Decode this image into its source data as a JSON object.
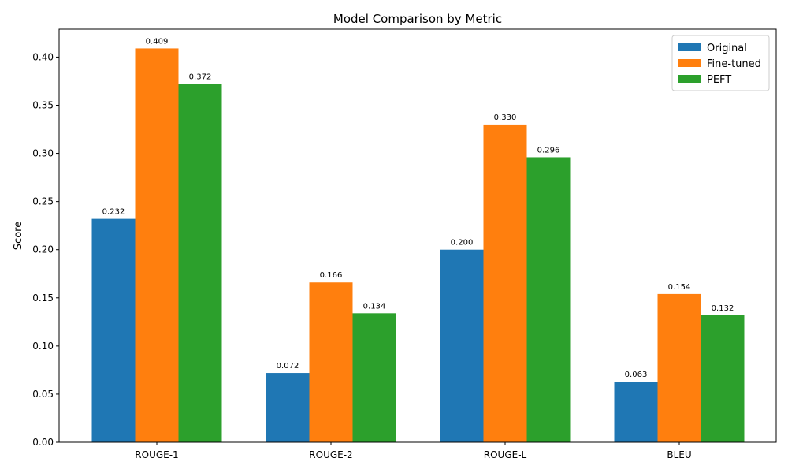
{
  "chart_data": {
    "type": "bar",
    "title": "Model Comparison by Metric",
    "xlabel": "",
    "ylabel": "Score",
    "ylim": [
      0,
      0.429
    ],
    "yticks": [
      "0.00",
      "0.05",
      "0.10",
      "0.15",
      "0.20",
      "0.25",
      "0.30",
      "0.35",
      "0.40"
    ],
    "grid": false,
    "legend_position": "top-right",
    "categories": [
      "ROUGE-1",
      "ROUGE-2",
      "ROUGE-L",
      "BLEU"
    ],
    "series": [
      {
        "name": "Original",
        "color": "#1f77b4",
        "values": [
          0.232,
          0.072,
          0.2,
          0.063
        ],
        "labels": [
          "0.232",
          "0.072",
          "0.200",
          "0.063"
        ]
      },
      {
        "name": "Fine-tuned",
        "color": "#ff7f0e",
        "values": [
          0.409,
          0.166,
          0.33,
          0.154
        ],
        "labels": [
          "0.409",
          "0.166",
          "0.330",
          "0.154"
        ]
      },
      {
        "name": "PEFT",
        "color": "#2ca02c",
        "values": [
          0.372,
          0.134,
          0.296,
          0.132
        ],
        "labels": [
          "0.372",
          "0.134",
          "0.296",
          "0.132"
        ]
      }
    ]
  }
}
